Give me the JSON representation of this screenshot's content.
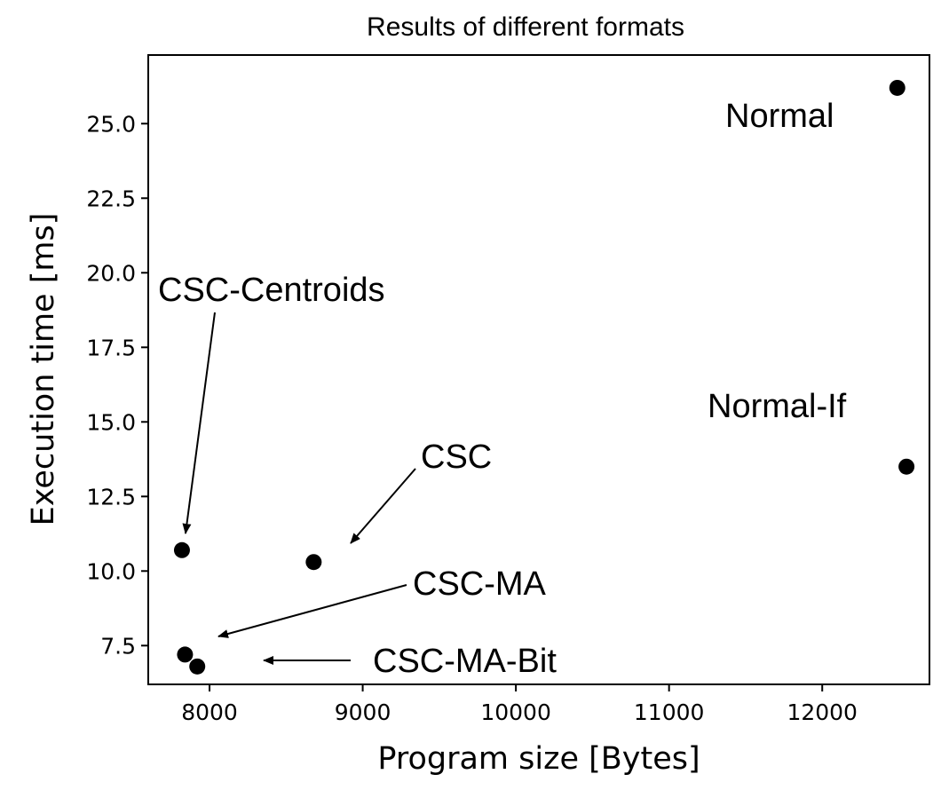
{
  "chart_data": {
    "type": "scatter",
    "title": "Results of different formats",
    "xlabel": "Program size [Bytes]",
    "ylabel": "Execution time [ms]",
    "xlim": [
      7600,
      12700
    ],
    "ylim": [
      6.2,
      27.3
    ],
    "xticks": [
      8000,
      9000,
      10000,
      11000,
      12000
    ],
    "xtick_labels": [
      "8000",
      "9000",
      "10000",
      "11000",
      "12000"
    ],
    "yticks": [
      7.5,
      10.0,
      12.5,
      15.0,
      17.5,
      20.0,
      22.5,
      25.0
    ],
    "ytick_labels": [
      "7.5",
      "10.0",
      "12.5",
      "15.0",
      "17.5",
      "20.0",
      "22.5",
      "25.0"
    ],
    "grid": false,
    "marker_color": "#000000",
    "points": [
      {
        "label": "Normal",
        "x": 12490,
        "y": 26.2
      },
      {
        "label": "Normal-If",
        "x": 12550,
        "y": 13.5
      },
      {
        "label": "CSC",
        "x": 8680,
        "y": 10.3
      },
      {
        "label": "CSC-Centroids",
        "x": 7820,
        "y": 10.7
      },
      {
        "label": "CSC-MA",
        "x": 7840,
        "y": 7.2
      },
      {
        "label": "CSC-MA-Bit",
        "x": 7920,
        "y": 6.8
      }
    ],
    "annotations": [
      {
        "text": "Normal",
        "arrow": false
      },
      {
        "text": "Normal-If",
        "arrow": false
      },
      {
        "text": "CSC",
        "arrow": true
      },
      {
        "text": "CSC-Centroids",
        "arrow": true
      },
      {
        "text": "CSC-MA",
        "arrow": true
      },
      {
        "text": "CSC-MA-Bit",
        "arrow": true
      }
    ]
  }
}
